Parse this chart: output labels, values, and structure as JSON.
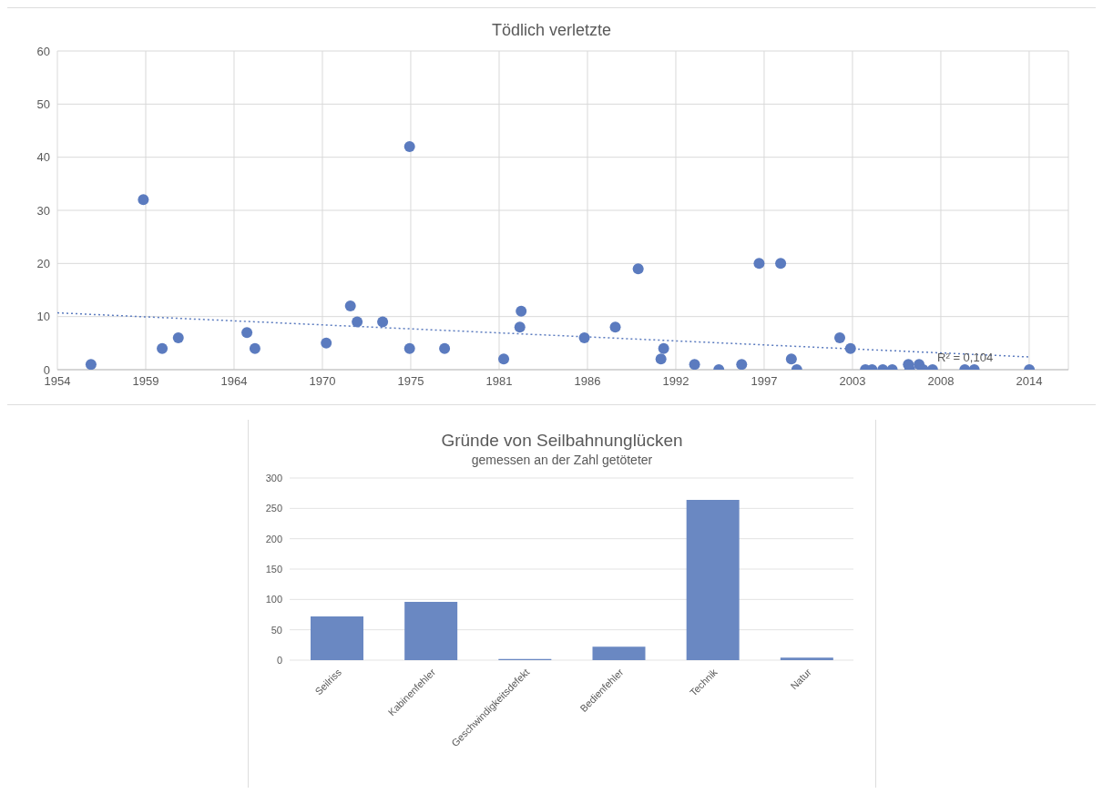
{
  "chart_data": [
    {
      "type": "scatter",
      "title": "Tödlich verletzte",
      "xlim": [
        "1954-01-01",
        "2016-09-01"
      ],
      "xticks": [
        {
          "value": "1954-01-01",
          "label": "1954"
        },
        {
          "value": "1959-06-24",
          "label": "1959"
        },
        {
          "value": "1964-12-14",
          "label": "1964"
        },
        {
          "value": "1970-06-06",
          "label": "1970"
        },
        {
          "value": "1975-11-27",
          "label": "1975"
        },
        {
          "value": "1981-05-20",
          "label": "1981"
        },
        {
          "value": "1986-11-10",
          "label": "1986"
        },
        {
          "value": "1992-05-02",
          "label": "1992"
        },
        {
          "value": "1997-10-23",
          "label": "1997"
        },
        {
          "value": "2003-04-15",
          "label": "2003"
        },
        {
          "value": "2008-10-05",
          "label": "2008"
        },
        {
          "value": "2014-03-28",
          "label": "2014"
        }
      ],
      "ylim": [
        0,
        60
      ],
      "yticks": [
        0,
        10,
        20,
        30,
        40,
        50,
        60
      ],
      "grid": true,
      "annotations": [
        "R² = 0,104"
      ],
      "series": [
        {
          "type": "scatter",
          "color": "#5b7bbf",
          "marker": "circle",
          "x": [
            "1956-02",
            "1959-05",
            "1960-07",
            "1961-07",
            "1965-10",
            "1966-04",
            "1970-09",
            "1972-03",
            "1972-08",
            "1974-03",
            "1975-11",
            "1975-11",
            "1978-01",
            "1981-09",
            "1982-10",
            "1982-09",
            "1986-09",
            "1988-08",
            "1990-01",
            "1991-08",
            "1991-06",
            "1993-07",
            "1995-01",
            "1996-06",
            "1997-07",
            "1998-11",
            "1999-07",
            "1999-11",
            "2002-07",
            "2003-03",
            "2004-02",
            "2004-07",
            "2005-03",
            "2005-10",
            "2006-10",
            "2006-11",
            "2007-06",
            "2007-09",
            "2008-04",
            "2010-04",
            "2010-11",
            "2014-04"
          ],
          "values": [
            1,
            32,
            4,
            6,
            7,
            4,
            5,
            12,
            9,
            9,
            42,
            4,
            4,
            2,
            11,
            8,
            6,
            8,
            19,
            4,
            2,
            1,
            0,
            1,
            20,
            20,
            2,
            0,
            6,
            4,
            0,
            0,
            0,
            0,
            1,
            0,
            1,
            0,
            0,
            0,
            0,
            0
          ]
        },
        {
          "type": "line",
          "color": "#5b7bbf",
          "marker": "none",
          "line_style": "dotted",
          "x": [
            "1954-01",
            "2014-04"
          ],
          "values": [
            10.7,
            2.4
          ]
        }
      ]
    },
    {
      "type": "bar",
      "title": "Gründe von Seilbahnunglücken",
      "subtitle": "gemessen an der Zahl getöteter",
      "categories": [
        "Seilriss",
        "Kabinenfehler",
        "Geschwindigkeitsdefekt",
        "Bedienfehler",
        "Technik",
        "Natur"
      ],
      "values": [
        72,
        96,
        2,
        22,
        264,
        4
      ],
      "color": "#6a88c2",
      "ylim": [
        0,
        300
      ],
      "yticks": [
        0,
        50,
        100,
        150,
        200,
        250,
        300
      ],
      "grid": "y"
    }
  ]
}
